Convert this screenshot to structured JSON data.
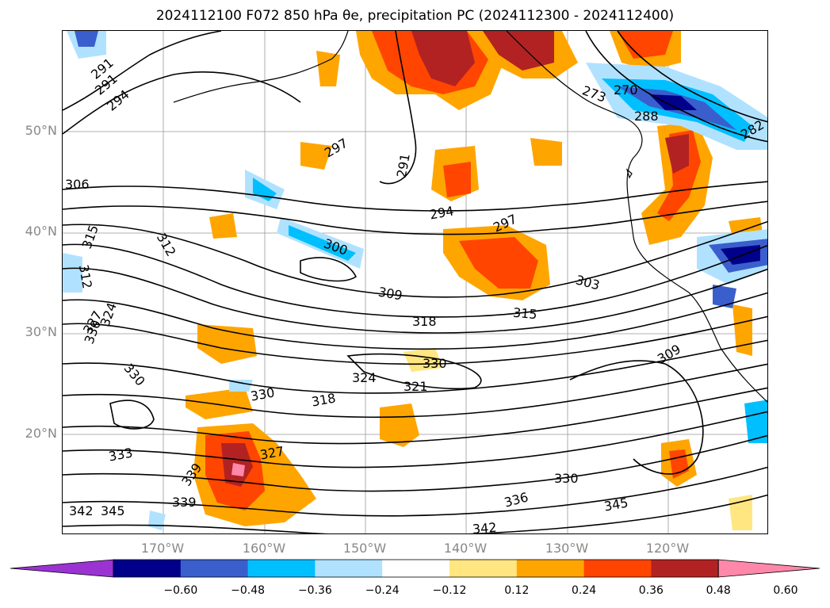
{
  "title": "2024112100 F072 850 hPa θe, precipitation PC (2024112300 - 2024112400)",
  "map": {
    "lat_labels": [
      "50°N",
      "40°N",
      "30°N",
      "20°N"
    ],
    "lon_labels": [
      "170°W",
      "160°W",
      "150°W",
      "140°W",
      "130°W",
      "120°W"
    ],
    "contour_labels": [
      {
        "text": "291"
      },
      {
        "text": "291"
      },
      {
        "text": "294"
      },
      {
        "text": "297"
      },
      {
        "text": "291"
      },
      {
        "text": "306"
      },
      {
        "text": "315"
      },
      {
        "text": "312"
      },
      {
        "text": "294"
      },
      {
        "text": "297"
      },
      {
        "text": "300"
      },
      {
        "text": "303"
      },
      {
        "text": "309"
      },
      {
        "text": "318"
      },
      {
        "text": "315"
      },
      {
        "text": "309"
      },
      {
        "text": "330"
      },
      {
        "text": "330"
      },
      {
        "text": "324"
      },
      {
        "text": "321"
      },
      {
        "text": "330"
      },
      {
        "text": "318"
      },
      {
        "text": "327"
      },
      {
        "text": "333"
      },
      {
        "text": "339"
      },
      {
        "text": "339"
      },
      {
        "text": "342"
      },
      {
        "text": "345"
      },
      {
        "text": "330"
      },
      {
        "text": "336"
      },
      {
        "text": "345"
      },
      {
        "text": "342"
      },
      {
        "text": "270"
      },
      {
        "text": "273"
      },
      {
        "text": "288"
      },
      {
        "text": "282"
      },
      {
        "text": "312"
      },
      {
        "text": "324"
      },
      {
        "text": "327"
      },
      {
        "text": "330"
      }
    ]
  },
  "colorbar": {
    "colors": [
      "#9a33d1",
      "#00008b",
      "#3a5fcd",
      "#00bfff",
      "#b0e2ff",
      "#ffffff",
      "#ffe680",
      "#ffa500",
      "#ff4500",
      "#b22222",
      "#ff88aa"
    ],
    "ticks": [
      "−0.60",
      "−0.48",
      "−0.36",
      "−0.24",
      "−0.12",
      "0.12",
      "0.24",
      "0.36",
      "0.48",
      "0.60"
    ]
  }
}
